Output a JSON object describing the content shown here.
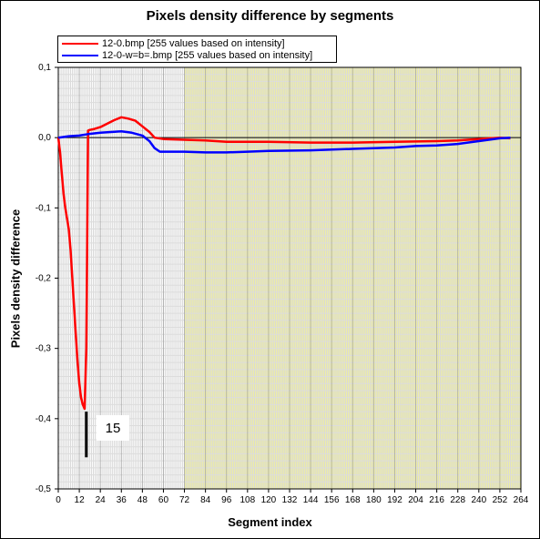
{
  "chart_data": {
    "type": "line",
    "title": "Pixels density difference by segments",
    "xlabel": "Segment index",
    "ylabel": "Pixels density difference",
    "xlim": [
      0,
      264
    ],
    "ylim": [
      -0.5,
      0.1
    ],
    "x_ticks": [
      "0",
      "12",
      "24",
      "36",
      "48",
      "60",
      "72",
      "84",
      "96",
      "108",
      "120",
      "132",
      "144",
      "156",
      "168",
      "180",
      "192",
      "204",
      "216",
      "228",
      "240",
      "252",
      "264"
    ],
    "y_ticks": [
      "0,1",
      "0,0",
      "-0,1",
      "-0,2",
      "-0,3",
      "-0,4",
      "-0,5"
    ],
    "grid": true,
    "legend_position": "top-left",
    "colors": {
      "shaded_region": "#f0f0a0",
      "grid": "#c8c8c8"
    },
    "series": [
      {
        "name": "12-0.bmp [255 values based on intensity]",
        "color": "#ff0000",
        "points": [
          [
            0,
            0.0
          ],
          [
            1,
            -0.02
          ],
          [
            2,
            -0.05
          ],
          [
            3,
            -0.08
          ],
          [
            4,
            -0.1
          ],
          [
            6,
            -0.13
          ],
          [
            7,
            -0.16
          ],
          [
            8,
            -0.2
          ],
          [
            9,
            -0.24
          ],
          [
            10,
            -0.28
          ],
          [
            11,
            -0.32
          ],
          [
            12,
            -0.35
          ],
          [
            13,
            -0.37
          ],
          [
            14,
            -0.38
          ],
          [
            15,
            -0.386
          ],
          [
            16,
            -0.3
          ],
          [
            17,
            0.01
          ],
          [
            18,
            0.011
          ],
          [
            20,
            0.012
          ],
          [
            24,
            0.015
          ],
          [
            28,
            0.02
          ],
          [
            32,
            0.025
          ],
          [
            36,
            0.029
          ],
          [
            40,
            0.027
          ],
          [
            44,
            0.024
          ],
          [
            48,
            0.016
          ],
          [
            52,
            0.008
          ],
          [
            55,
            0.0
          ],
          [
            60,
            -0.002
          ],
          [
            72,
            -0.003
          ],
          [
            84,
            -0.004
          ],
          [
            96,
            -0.006
          ],
          [
            120,
            -0.006
          ],
          [
            144,
            -0.007
          ],
          [
            168,
            -0.007
          ],
          [
            192,
            -0.006
          ],
          [
            216,
            -0.005
          ],
          [
            228,
            -0.004
          ],
          [
            240,
            -0.002
          ],
          [
            252,
            0.0
          ],
          [
            258,
            -0.001
          ]
        ]
      },
      {
        "name": "12-0-w=b=.bmp [255 values based on intensity]",
        "color": "#0000ff",
        "points": [
          [
            0,
            0.0
          ],
          [
            6,
            0.002
          ],
          [
            12,
            0.003
          ],
          [
            17,
            0.005
          ],
          [
            24,
            0.007
          ],
          [
            30,
            0.008
          ],
          [
            36,
            0.009
          ],
          [
            42,
            0.007
          ],
          [
            48,
            0.003
          ],
          [
            52,
            -0.005
          ],
          [
            55,
            -0.015
          ],
          [
            58,
            -0.02
          ],
          [
            72,
            -0.02
          ],
          [
            84,
            -0.021
          ],
          [
            96,
            -0.021
          ],
          [
            108,
            -0.02
          ],
          [
            120,
            -0.019
          ],
          [
            144,
            -0.018
          ],
          [
            168,
            -0.016
          ],
          [
            180,
            -0.015
          ],
          [
            192,
            -0.014
          ],
          [
            204,
            -0.012
          ],
          [
            216,
            -0.011
          ],
          [
            228,
            -0.009
          ],
          [
            240,
            -0.005
          ],
          [
            252,
            -0.001
          ],
          [
            258,
            0.0
          ]
        ]
      }
    ],
    "annotation": {
      "text": "15",
      "x": 16
    }
  }
}
